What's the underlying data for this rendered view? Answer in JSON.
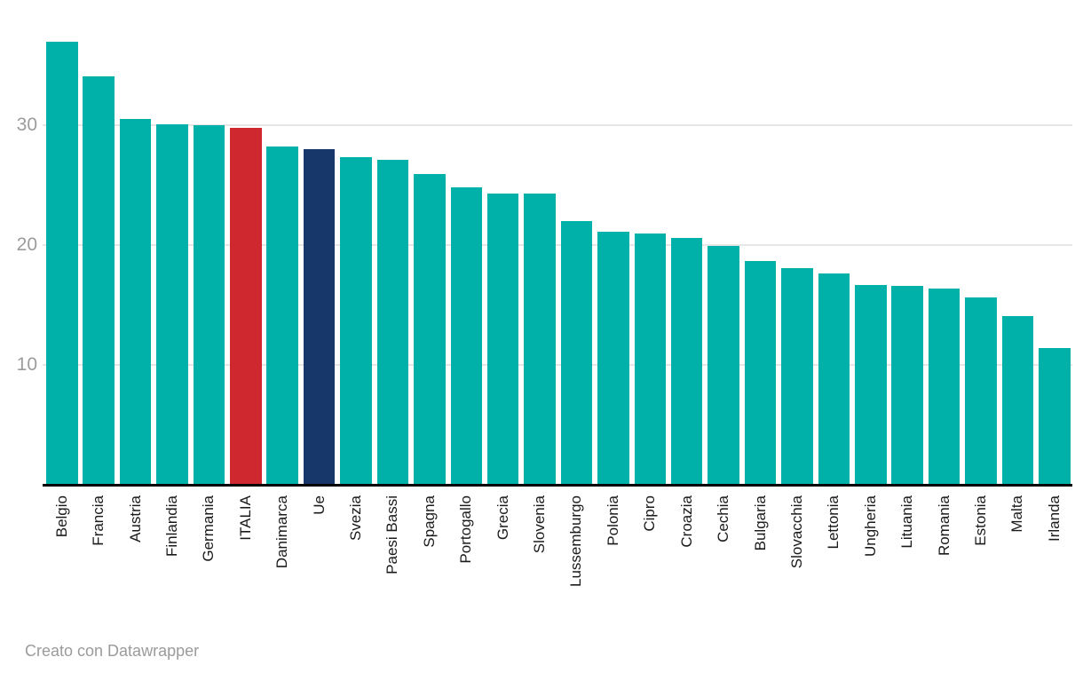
{
  "chart_data": {
    "type": "bar",
    "categories": [
      "Belgio",
      "Francia",
      "Austria",
      "Finlandia",
      "Germania",
      "ITALIA",
      "Danimarca",
      "Ue",
      "Svezia",
      "Paesi Bassi",
      "Spagna",
      "Portogallo",
      "Grecia",
      "Slovenia",
      "Lussemburgo",
      "Polonia",
      "Cipro",
      "Croazia",
      "Cechia",
      "Bulgaria",
      "Slovacchia",
      "Lettonia",
      "Ungheria",
      "Lituania",
      "Romania",
      "Estonia",
      "Malta",
      "Irlanda"
    ],
    "values": [
      37.0,
      34.1,
      30.5,
      30.1,
      30.0,
      29.8,
      28.2,
      28.0,
      27.3,
      27.1,
      25.9,
      24.8,
      24.3,
      24.3,
      22.0,
      21.1,
      21.0,
      20.6,
      19.9,
      18.7,
      18.1,
      17.6,
      16.7,
      16.6,
      16.4,
      15.6,
      14.1,
      11.4
    ],
    "yticks": [
      "10",
      "20",
      "30"
    ],
    "ylim": [
      0,
      39.7
    ],
    "grid": "horizontal-only",
    "legend": "none",
    "bar_default_color": "#00B1A9",
    "highlights": {
      "ITALIA": "#D0282F",
      "Ue": "#17376B"
    },
    "axis_line_color": "#000000",
    "tick_label_color": "#9c9c9c",
    "category_label_color": "#1a1a1a",
    "category_label_rotation_deg": -90
  },
  "footer": {
    "credit": "Creato con Datawrapper"
  }
}
